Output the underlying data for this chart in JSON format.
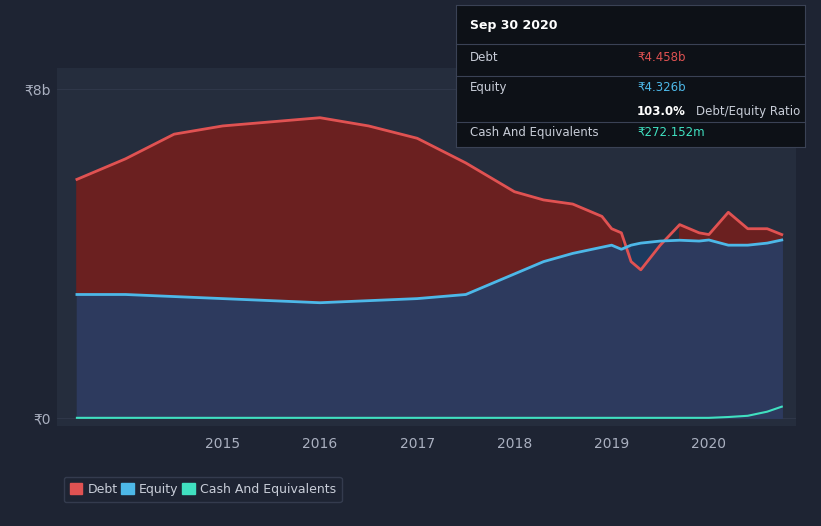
{
  "background_color": "#1e2433",
  "plot_bg_color": "#252d3d",
  "grid_color": "#3a4255",
  "title_box": {
    "date": "Sep 30 2020",
    "debt_label": "Debt",
    "debt_value": "₹4.458b",
    "equity_label": "Equity",
    "equity_value": "₹4.326b",
    "ratio_bold": "103.0%",
    "ratio_text": "Debt/Equity Ratio",
    "cash_label": "Cash And Equivalents",
    "cash_value": "₹272.152m"
  },
  "ytick_labels": [
    "₹8b",
    "₹0"
  ],
  "xtick_labels": [
    "2015",
    "2016",
    "2017",
    "2018",
    "2019",
    "2020"
  ],
  "legend_labels": [
    "Debt",
    "Equity",
    "Cash And Equivalents"
  ],
  "legend_colors": [
    "#e05252",
    "#4db8e8",
    "#40e0c0"
  ],
  "debt_color": "#e05252",
  "equity_color": "#4db8e8",
  "cash_color": "#40e0c0",
  "fill_debt_equity_color": "#6b2020",
  "fill_equity_zero_color": "#2d3a5e",
  "fill_equity_gt_debt_color": "#1e3a5e",
  "x": [
    2013.5,
    2014.0,
    2014.5,
    2015.0,
    2015.5,
    2016.0,
    2016.5,
    2017.0,
    2017.5,
    2018.0,
    2018.3,
    2018.6,
    2018.9,
    2019.0,
    2019.1,
    2019.2,
    2019.3,
    2019.5,
    2019.7,
    2019.9,
    2020.0,
    2020.2,
    2020.4,
    2020.6,
    2020.75
  ],
  "debt": [
    5.8,
    6.3,
    6.9,
    7.1,
    7.2,
    7.3,
    7.1,
    6.8,
    6.2,
    5.5,
    5.3,
    5.2,
    4.9,
    4.6,
    4.5,
    3.8,
    3.6,
    4.2,
    4.7,
    4.5,
    4.458,
    5.0,
    4.6,
    4.6,
    4.458
  ],
  "equity": [
    3.0,
    3.0,
    2.95,
    2.9,
    2.85,
    2.8,
    2.85,
    2.9,
    3.0,
    3.5,
    3.8,
    4.0,
    4.15,
    4.2,
    4.1,
    4.2,
    4.25,
    4.3,
    4.32,
    4.3,
    4.326,
    4.2,
    4.2,
    4.25,
    4.326
  ],
  "cash": [
    0.0,
    0.0,
    0.0,
    0.0,
    0.0,
    0.0,
    0.0,
    0.0,
    0.0,
    0.0,
    0.0,
    0.0,
    0.0,
    0.0,
    0.0,
    0.0,
    0.0,
    0.0,
    0.0,
    0.0,
    0.0,
    0.02,
    0.05,
    0.15,
    0.272
  ],
  "ylim": [
    -0.2,
    8.5
  ],
  "xlim": [
    2013.3,
    2020.9
  ]
}
